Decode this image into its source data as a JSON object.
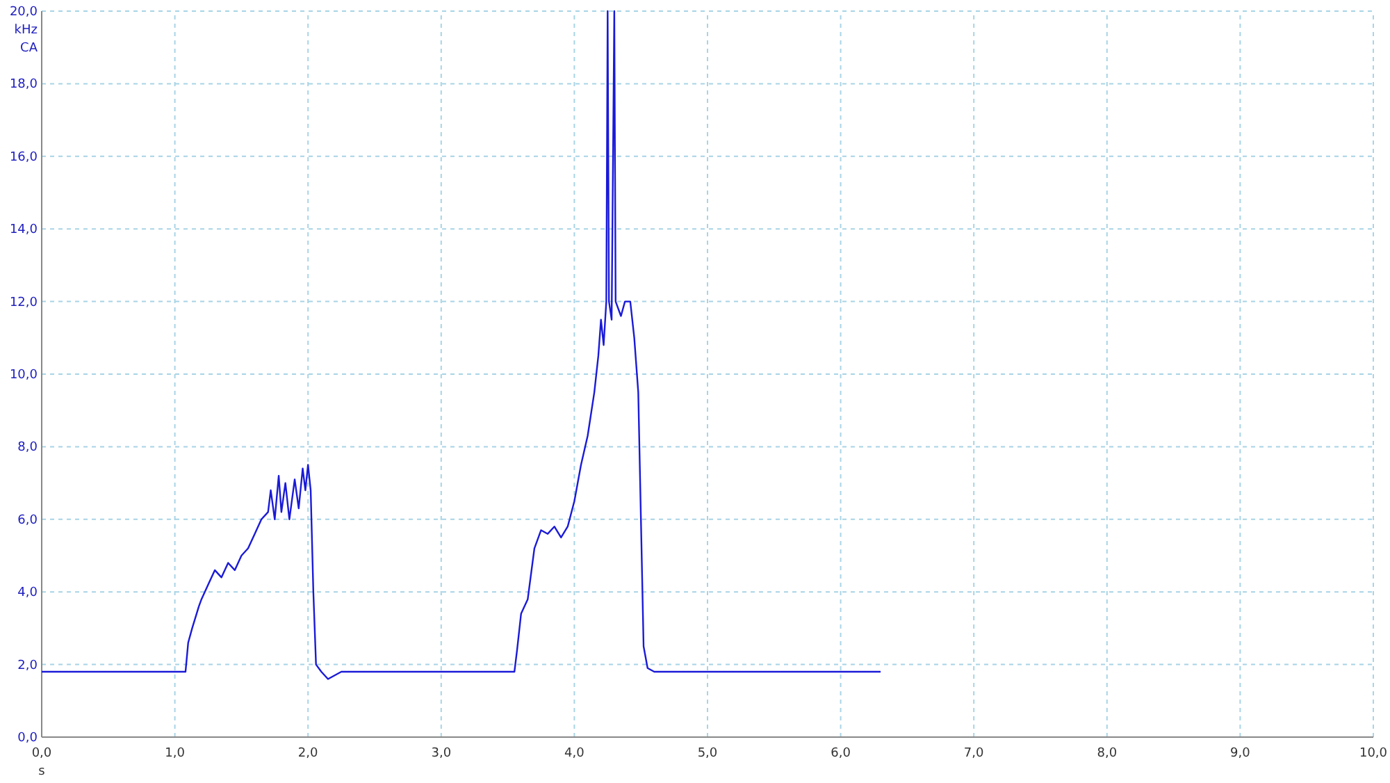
{
  "chart_data": {
    "type": "line",
    "xlabel": "s",
    "ylabel": "kHz",
    "annotations": [
      "CA"
    ],
    "xlim": [
      0,
      10
    ],
    "ylim": [
      0,
      20
    ],
    "xticks": [
      {
        "value": 0,
        "label": "0,0"
      },
      {
        "value": 1,
        "label": "1,0"
      },
      {
        "value": 2,
        "label": "2,0"
      },
      {
        "value": 3,
        "label": "3,0"
      },
      {
        "value": 4,
        "label": "4,0"
      },
      {
        "value": 5,
        "label": "5,0"
      },
      {
        "value": 6,
        "label": "6,0"
      },
      {
        "value": 7,
        "label": "7,0"
      },
      {
        "value": 8,
        "label": "8,0"
      },
      {
        "value": 9,
        "label": "9,0"
      },
      {
        "value": 10,
        "label": "10,0"
      }
    ],
    "yticks": [
      {
        "value": 0,
        "label": "0,0"
      },
      {
        "value": 2,
        "label": "2,0"
      },
      {
        "value": 4,
        "label": "4,0"
      },
      {
        "value": 6,
        "label": "6,0"
      },
      {
        "value": 8,
        "label": "8,0"
      },
      {
        "value": 10,
        "label": "10,0"
      },
      {
        "value": 12,
        "label": "12,0"
      },
      {
        "value": 14,
        "label": "14,0"
      },
      {
        "value": 16,
        "label": "16,0"
      },
      {
        "value": 18,
        "label": "18,0"
      },
      {
        "value": 20,
        "label": "20,0"
      }
    ],
    "grid": true,
    "marker": "none",
    "line_style": "solid",
    "series": [
      {
        "color": "#1a1ad8",
        "x": [
          0,
          1.08,
          1.1,
          1.13,
          1.18,
          1.2,
          1.25,
          1.3,
          1.35,
          1.4,
          1.45,
          1.5,
          1.55,
          1.6,
          1.65,
          1.7,
          1.72,
          1.75,
          1.78,
          1.8,
          1.83,
          1.86,
          1.9,
          1.93,
          1.96,
          1.98,
          2.0,
          2.02,
          2.04,
          2.06,
          2.1,
          2.15,
          2.2,
          2.25,
          3.55,
          3.57,
          3.6,
          3.65,
          3.7,
          3.75,
          3.8,
          3.85,
          3.9,
          3.95,
          4.0,
          4.05,
          4.1,
          4.15,
          4.18,
          4.2,
          4.22,
          4.24,
          4.25,
          4.26,
          4.28,
          4.3,
          4.31,
          4.35,
          4.38,
          4.42,
          4.45,
          4.48,
          4.5,
          4.52,
          4.55,
          4.6,
          6.3
        ],
        "values": [
          1.8,
          1.8,
          2.6,
          3.0,
          3.6,
          3.8,
          4.2,
          4.6,
          4.4,
          4.8,
          4.6,
          5.0,
          5.2,
          5.6,
          6.0,
          6.2,
          6.8,
          6.0,
          7.2,
          6.2,
          7.0,
          6.0,
          7.1,
          6.3,
          7.4,
          6.8,
          7.5,
          6.8,
          4.0,
          2.0,
          1.8,
          1.6,
          1.7,
          1.8,
          1.8,
          2.4,
          3.4,
          3.8,
          5.2,
          5.7,
          5.6,
          5.8,
          5.5,
          5.8,
          6.5,
          7.5,
          8.3,
          9.5,
          10.5,
          11.5,
          10.8,
          12.0,
          20,
          12.0,
          11.5,
          20,
          12.0,
          11.6,
          12.0,
          12.0,
          11.0,
          9.5,
          6.0,
          2.5,
          1.9,
          1.8,
          1.8
        ]
      }
    ]
  }
}
